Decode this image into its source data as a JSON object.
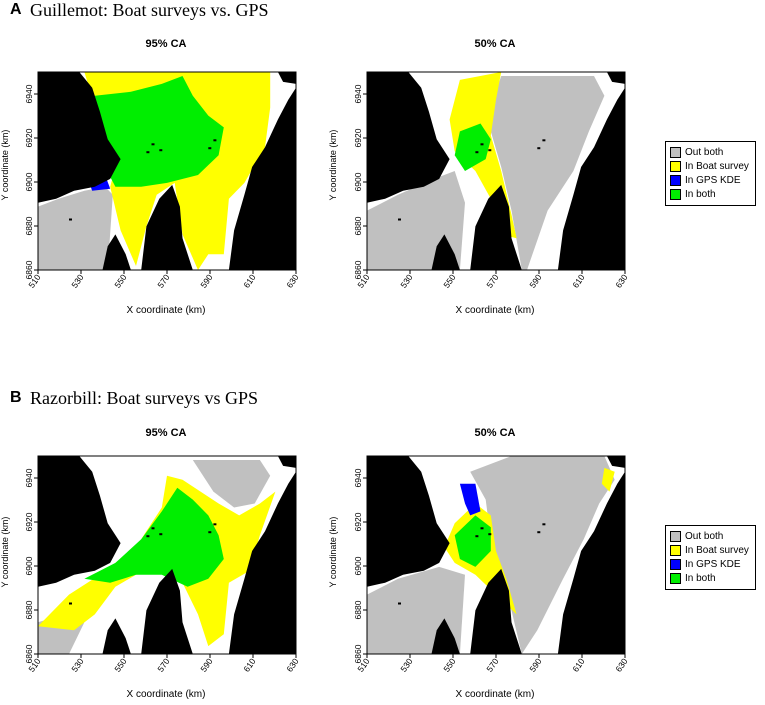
{
  "panels": [
    {
      "label": "A",
      "title": "Guillemot: Boat surveys vs. GPS"
    },
    {
      "label": "B",
      "title": "Razorbill: Boat surveys vs GPS"
    }
  ],
  "legend": {
    "entries": [
      {
        "name": "Out both",
        "color": "#c0c0c0"
      },
      {
        "name": "In Boat survey",
        "color": "#ffff00"
      },
      {
        "name": "In GPS KDE",
        "color": "#0000ff"
      },
      {
        "name": "In both",
        "color": "#00ee00"
      }
    ]
  },
  "colors": {
    "land": "#000000",
    "out_both": "#c0c0c0",
    "boat": "#ffff00",
    "gps": "#0000ff",
    "both": "#00ee00"
  },
  "chart_data": [
    {
      "type": "heatmap",
      "panel": "A",
      "title": "95% CA",
      "xlabel": "X coordinate (km)",
      "ylabel": "Y coordinate (km)",
      "x_ticks": [
        "510",
        "530",
        "550",
        "570",
        "590",
        "610",
        "630"
      ],
      "y_ticks": [
        "6860",
        "6880",
        "6900",
        "6920",
        "6940"
      ],
      "xlim": [
        510,
        630
      ],
      "ylim": [
        6860,
        6950
      ],
      "legend": "right",
      "grid": false
    },
    {
      "type": "heatmap",
      "panel": "A",
      "title": "50% CA",
      "xlabel": "X coordinate (km)",
      "ylabel": "Y coordinate (km)",
      "x_ticks": [
        "510",
        "530",
        "550",
        "570",
        "590",
        "610",
        "630"
      ],
      "y_ticks": [
        "6860",
        "6880",
        "6900",
        "6920",
        "6940"
      ],
      "xlim": [
        510,
        630
      ],
      "ylim": [
        6860,
        6950
      ],
      "legend": "right",
      "grid": false
    },
    {
      "type": "heatmap",
      "panel": "B",
      "title": "95% CA",
      "xlabel": "X coordinate (km)",
      "ylabel": "Y coordinate (km)",
      "x_ticks": [
        "510",
        "530",
        "550",
        "570",
        "590",
        "610",
        "630"
      ],
      "y_ticks": [
        "6860",
        "6880",
        "6900",
        "6920",
        "6940"
      ],
      "xlim": [
        510,
        630
      ],
      "ylim": [
        6860,
        6950
      ],
      "legend": "right",
      "grid": false
    },
    {
      "type": "heatmap",
      "panel": "B",
      "title": "50% CA",
      "xlabel": "X coordinate (km)",
      "ylabel": "Y coordinate (km)",
      "x_ticks": [
        "510",
        "530",
        "550",
        "570",
        "590",
        "610",
        "630"
      ],
      "y_ticks": [
        "6860",
        "6880",
        "6900",
        "6920",
        "6940"
      ],
      "xlim": [
        510,
        630
      ],
      "ylim": [
        6860,
        6950
      ],
      "legend": "right",
      "grid": false
    }
  ]
}
